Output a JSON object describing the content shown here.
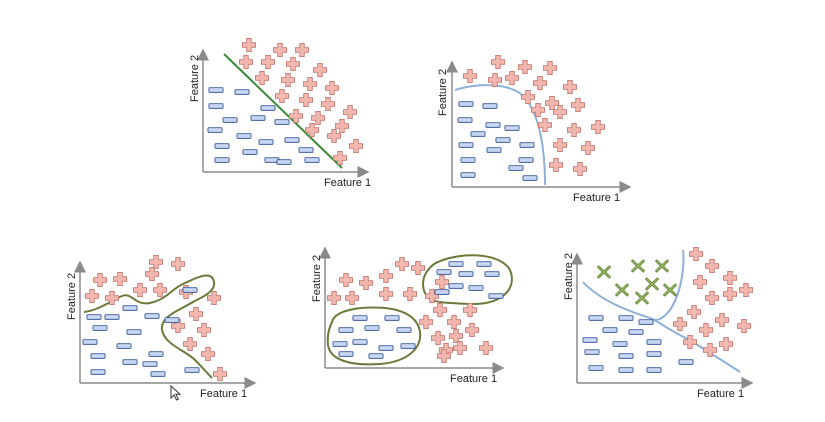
{
  "colors": {
    "axis": "#8a8a8a",
    "plus_fill": "#f2b8b0",
    "plus_stroke": "#c97a70",
    "minus_fill": "#c9d7f2",
    "minus_stroke": "#3d5a9a",
    "x_fill": "#9ab86a",
    "x_stroke": "#6b8a3c",
    "linear_boundary": "#3a8a34",
    "curve_boundary": "#8fb0d8",
    "blob_boundary": "#6b7a3a"
  },
  "icons": [
    "plus-marker-icon",
    "minus-marker-icon",
    "x-marker-icon",
    "mouse-pointer-icon"
  ],
  "panels": [
    {
      "id": "linear",
      "x_label": "Feature 1",
      "y_label": "Feature 2",
      "boundary": "linear"
    },
    {
      "id": "curved",
      "x_label": "Feature 1",
      "y_label": "Feature 2",
      "boundary": "curved"
    },
    {
      "id": "overfit",
      "x_label": "Feature 1",
      "y_label": "Feature 2",
      "boundary": "wiggly"
    },
    {
      "id": "islands",
      "x_label": "Feature 1",
      "y_label": "Feature 2",
      "boundary": "closed-regions"
    },
    {
      "id": "multiclass",
      "x_label": "Feature 1",
      "y_label": "Feature 2",
      "boundary": "three-class"
    }
  ]
}
